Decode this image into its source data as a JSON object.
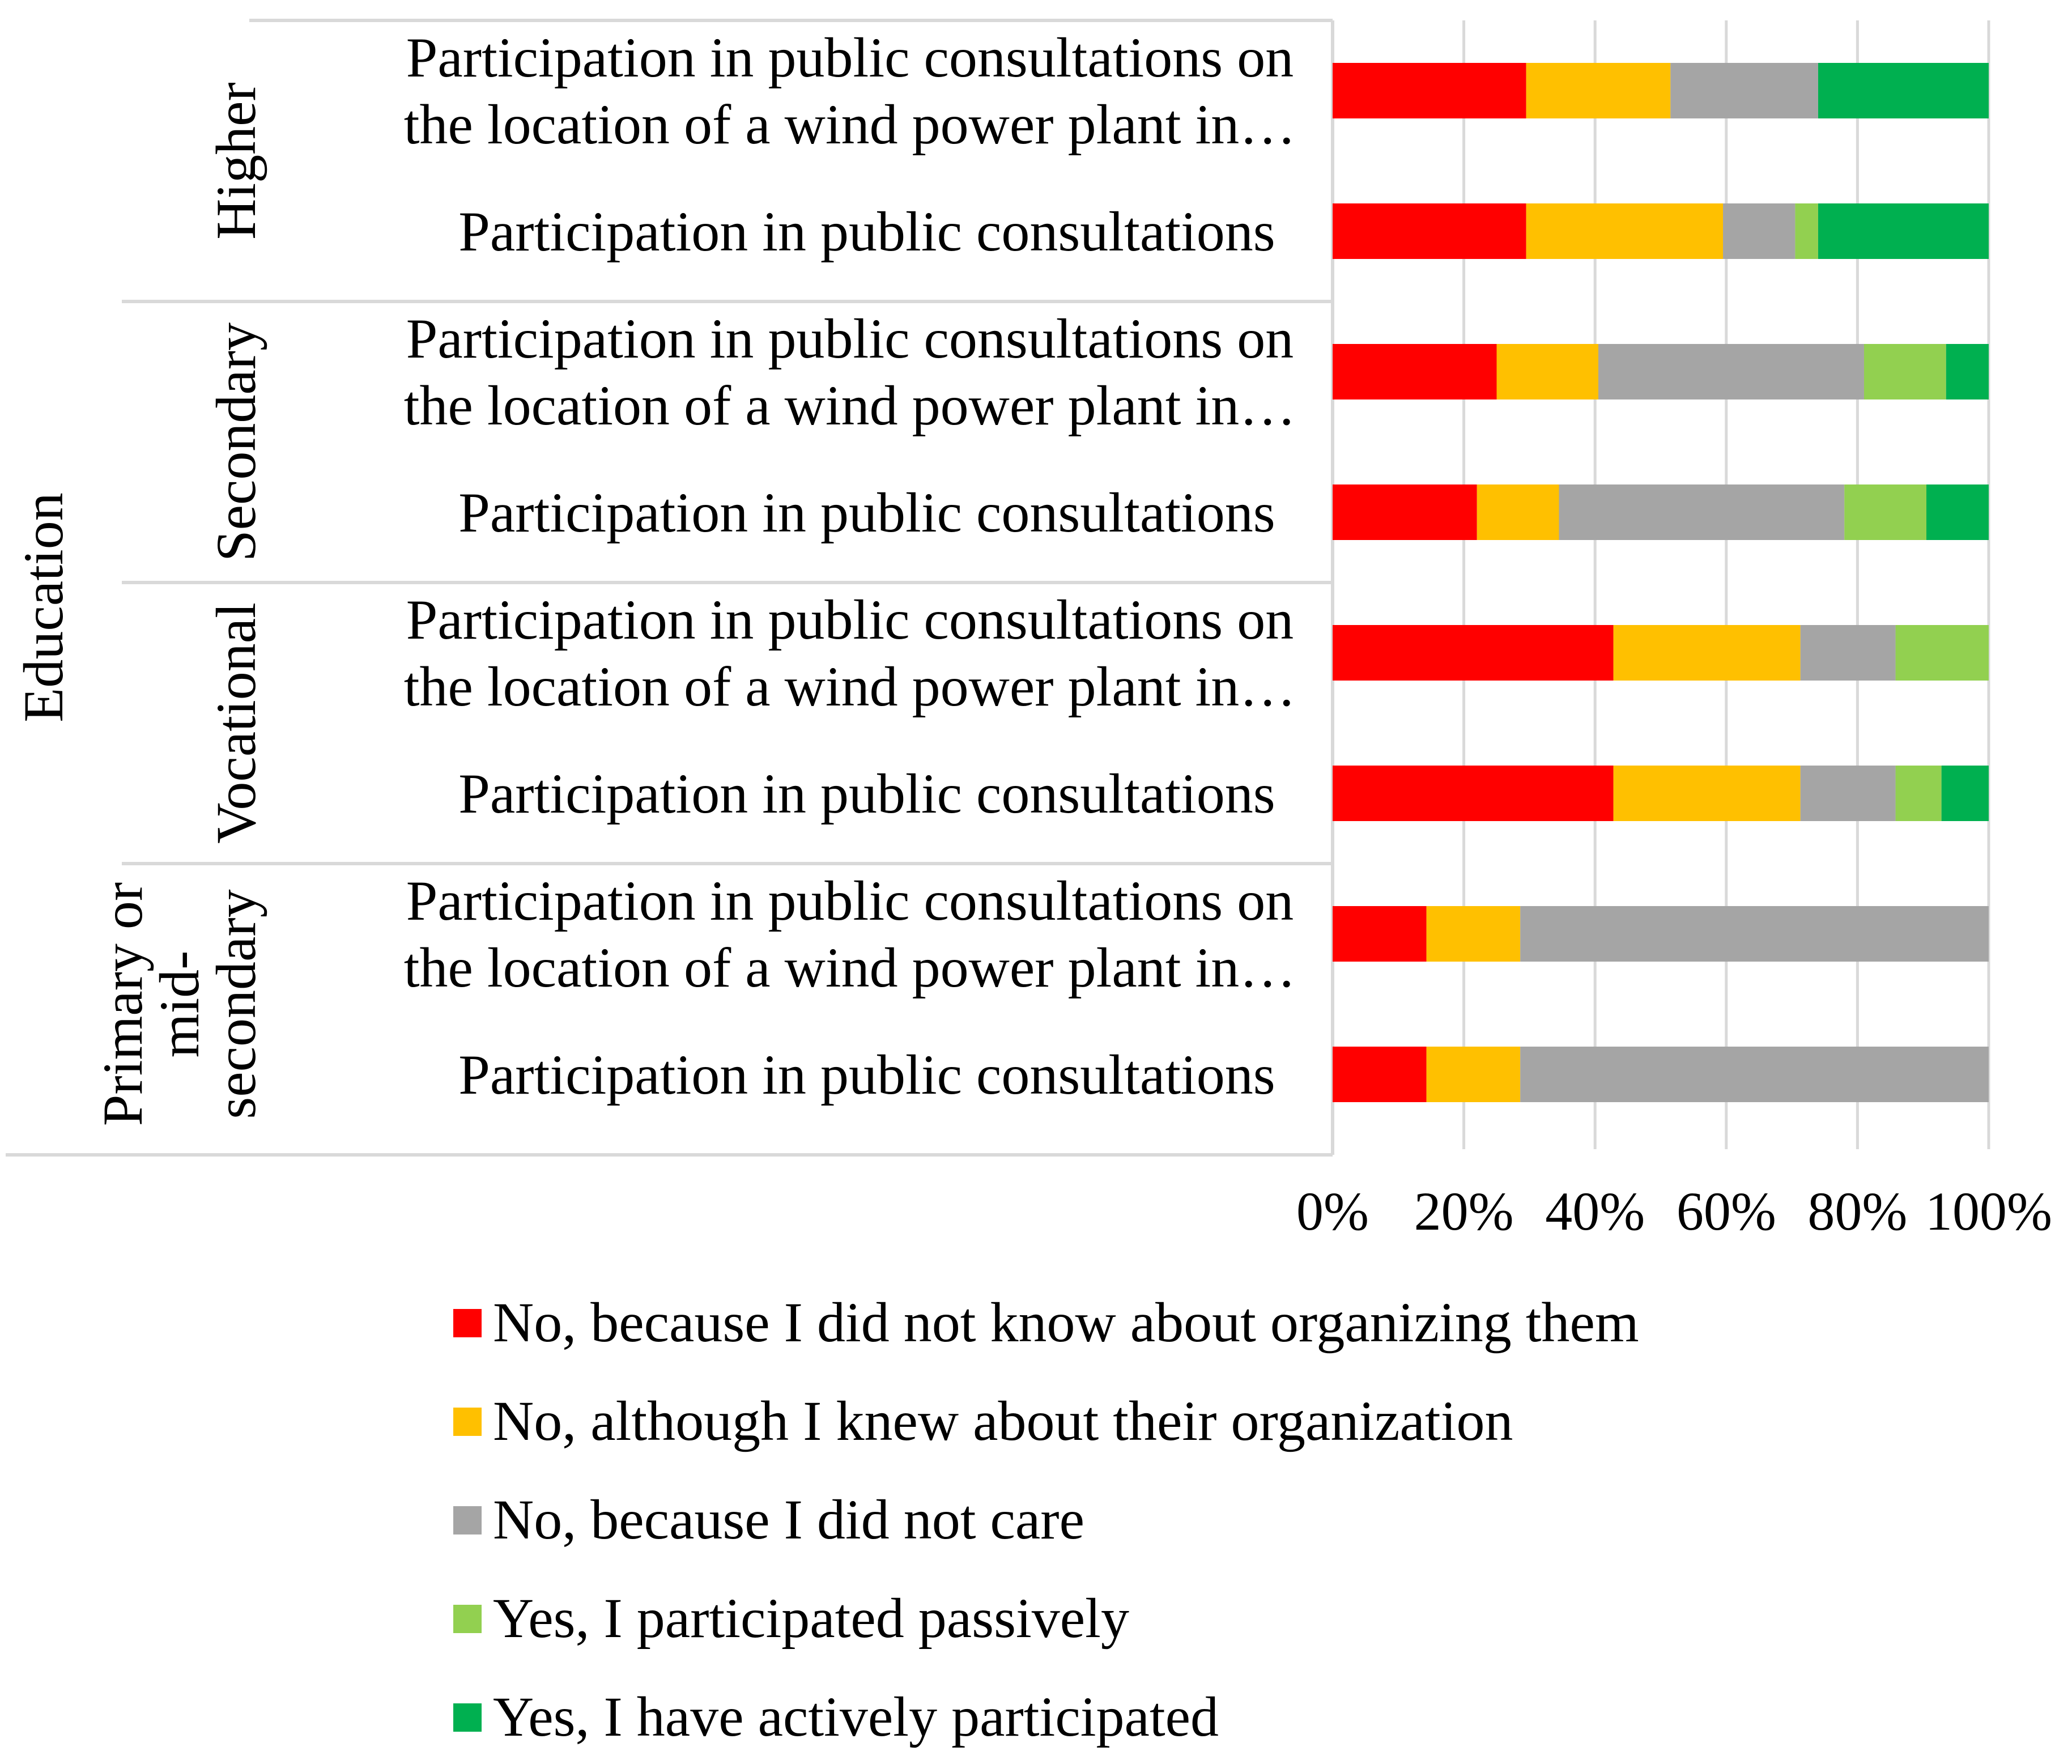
{
  "chart_data": {
    "type": "bar",
    "orientation": "horizontal",
    "stacked": true,
    "percent_stacked": true,
    "title": "",
    "axis_title": "Education",
    "xlim": [
      0,
      100
    ],
    "x_ticks": [
      "0%",
      "20%",
      "40%",
      "60%",
      "80%",
      "100%"
    ],
    "grid": true,
    "legend_position": "bottom",
    "groups": [
      {
        "name": "Higher",
        "label_lines": [
          "Higher"
        ],
        "rows": [
          {
            "label_lines": [
              "Participation in public consultations on",
              "the location of a wind power plant in…"
            ],
            "values": [
              29.5,
              22.0,
              22.5,
              0,
              26.0
            ]
          },
          {
            "label_lines": [
              "Participation in public consultations"
            ],
            "values": [
              29.5,
              30.0,
              11.0,
              3.5,
              26.0
            ]
          }
        ]
      },
      {
        "name": "Secondary",
        "label_lines": [
          "Secondary"
        ],
        "rows": [
          {
            "label_lines": [
              "Participation in public consultations on",
              "the location of a wind power plant in…"
            ],
            "values": [
              25.0,
              15.5,
              40.5,
              12.5,
              6.5
            ]
          },
          {
            "label_lines": [
              "Participation in public consultations"
            ],
            "values": [
              22.0,
              12.5,
              43.5,
              12.5,
              9.5
            ]
          }
        ]
      },
      {
        "name": "Vocational",
        "label_lines": [
          "Vocational"
        ],
        "rows": [
          {
            "label_lines": [
              "Participation in public consultations on",
              "the location of a wind power plant in…"
            ],
            "values": [
              42.8,
              28.5,
              14.5,
              14.2,
              0
            ]
          },
          {
            "label_lines": [
              "Participation in public consultations"
            ],
            "values": [
              42.8,
              28.5,
              14.5,
              7.0,
              7.2
            ]
          }
        ]
      },
      {
        "name": "Primary or mid-secondary",
        "label_lines": [
          "Primary or",
          "mid-",
          "secondary"
        ],
        "rows": [
          {
            "label_lines": [
              "Participation in public consultations on",
              "the location of a wind power plant in…"
            ],
            "values": [
              14.3,
              14.3,
              71.4,
              0,
              0
            ]
          },
          {
            "label_lines": [
              "Participation in public consultations"
            ],
            "values": [
              14.3,
              14.3,
              71.4,
              0,
              0
            ]
          }
        ]
      }
    ],
    "series": [
      {
        "name": "No, because I did not know about organizing them",
        "color": "#ff0000"
      },
      {
        "name": "No, although I knew about their organization",
        "color": "#ffc000"
      },
      {
        "name": "No, because I did not care",
        "color": "#a5a5a5"
      },
      {
        "name": "Yes, I participated passively",
        "color": "#92d050"
      },
      {
        "name": "Yes, I have actively participated",
        "color": "#00b050"
      }
    ]
  }
}
